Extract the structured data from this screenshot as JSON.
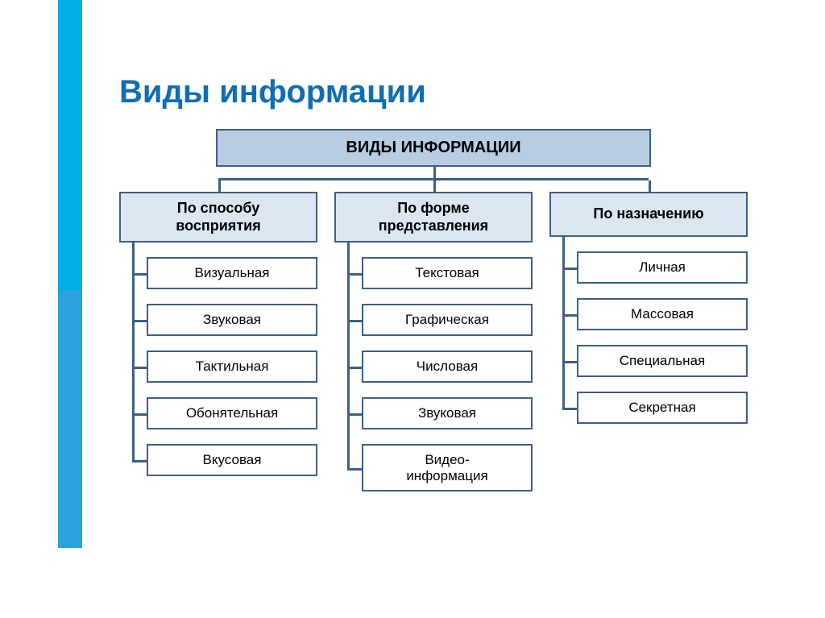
{
  "title": "Виды информации",
  "root": "ВИДЫ ИНФОРМАЦИИ",
  "colors": {
    "accentTop": "#00aee6",
    "accentBottom": "#2aa3dd",
    "titleColor": "#0f6db3",
    "rootBg": "#b7cde4",
    "categoryBg": "#dbe6f1",
    "itemBg": "#ffffff",
    "border": "#3e5f86",
    "line": "#3e5f86"
  },
  "layout": {
    "titleFontSize": 40,
    "rootFontSize": 20,
    "categoryFontSize": 18,
    "itemFontSize": 17,
    "hbarLeftPct": 15.8,
    "hbarRightPct": 15.8
  },
  "categories": [
    {
      "title": "По способу\nвосприятия",
      "items": [
        "Визуальная",
        "Звуковая",
        "Тактильная",
        "Обонятельная",
        "Вкусовая"
      ]
    },
    {
      "title": "По форме\nпредставления",
      "items": [
        "Текстовая",
        "Графическая",
        "Числовая",
        "Звуковая",
        "Видео-\nинформация"
      ]
    },
    {
      "title": "По назначению",
      "items": [
        "Личная",
        "Массовая",
        "Специальная",
        "Секретная"
      ]
    }
  ]
}
